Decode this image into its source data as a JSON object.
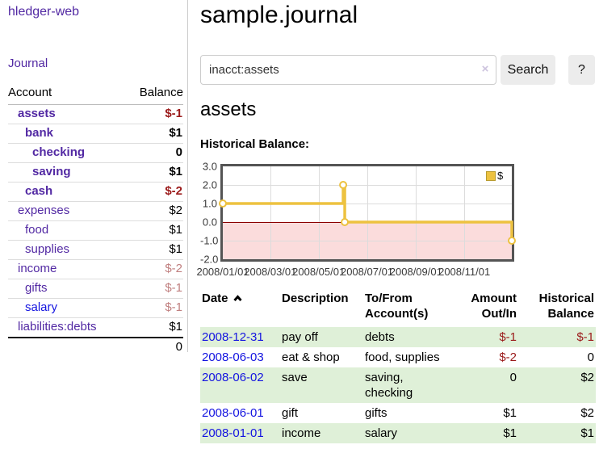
{
  "brand": "hledger-web",
  "colors": {
    "accent_purple": "#5229a3",
    "link_blue": "#1414e0",
    "negative_red": "#9b1a1a",
    "negative_soft_red": "#c07f7f",
    "stripe_green": "#dff0d8",
    "chart_gold": "#edc240",
    "chart_negative_fill": "#fbdcdc",
    "chart_zero_line": "#8b0000"
  },
  "sidebar": {
    "journal_link": "Journal",
    "account_header": "Account",
    "balance_header": "Balance",
    "rows": [
      {
        "account": "assets",
        "balance": "$-1"
      },
      {
        "account": "bank",
        "balance": "$1"
      },
      {
        "account": "checking",
        "balance": "0"
      },
      {
        "account": "saving",
        "balance": "$1"
      },
      {
        "account": "cash",
        "balance": "$-2"
      },
      {
        "account": "expenses",
        "balance": "$2"
      },
      {
        "account": "food",
        "balance": "$1"
      },
      {
        "account": "supplies",
        "balance": "$1"
      },
      {
        "account": "income",
        "balance": "$-2"
      },
      {
        "account": "gifts",
        "balance": "$-1"
      },
      {
        "account": "salary",
        "balance": "$-1"
      },
      {
        "account": "liabilities:debts",
        "balance": "$1"
      }
    ],
    "total": "0"
  },
  "header": {
    "title": "sample.journal"
  },
  "search": {
    "value": "inacct:assets",
    "clear_icon": "×",
    "search_button": "Search",
    "help_button": "?"
  },
  "account_page": {
    "heading": "assets",
    "section_label": "Historical Balance:"
  },
  "chart_data": {
    "type": "line",
    "step": true,
    "title": "Historical Balance",
    "x_range": [
      "2008-01-01",
      "2008-12-31"
    ],
    "ylim": [
      -2,
      3
    ],
    "yticks": [
      {
        "v": 3,
        "label": "3.0"
      },
      {
        "v": 2,
        "label": "2.0"
      },
      {
        "v": 1,
        "label": "1.0"
      },
      {
        "v": 0,
        "label": "0.0"
      },
      {
        "v": -1,
        "label": "-1.0"
      },
      {
        "v": -2,
        "label": "-2.0"
      }
    ],
    "xticks": [
      {
        "date": "2008-01-01",
        "label": "2008/01/01"
      },
      {
        "date": "2008-03-01",
        "label": "2008/03/01"
      },
      {
        "date": "2008-05-01",
        "label": "2008/05/01"
      },
      {
        "date": "2008-07-01",
        "label": "2008/07/01"
      },
      {
        "date": "2008-09-01",
        "label": "2008/09/01"
      },
      {
        "date": "2008-11-01",
        "label": "2008/11/01"
      }
    ],
    "series": [
      {
        "name": "$",
        "color": "#edc240",
        "points": [
          [
            "2008-01-01",
            1
          ],
          [
            "2008-06-01",
            2
          ],
          [
            "2008-06-03",
            0
          ],
          [
            "2008-12-31",
            -1
          ]
        ]
      }
    ],
    "legend_position": "top-right",
    "grid": true,
    "negative_region_shaded": true
  },
  "register": {
    "headers": {
      "date": "Date",
      "description": "Description",
      "accounts": "To/From Account(s)",
      "amount": "Amount Out/In",
      "historical": "Historical Balance"
    },
    "rows": [
      {
        "date": "2008-12-31",
        "description": "pay off",
        "accounts": "debts",
        "amount": "$-1",
        "historical": "$-1"
      },
      {
        "date": "2008-06-03",
        "description": "eat & shop",
        "accounts": "food, supplies",
        "amount": "$-2",
        "historical": "0"
      },
      {
        "date": "2008-06-02",
        "description": "save",
        "accounts": "saving, checking",
        "amount": "0",
        "historical": "$2"
      },
      {
        "date": "2008-06-01",
        "description": "gift",
        "accounts": "gifts",
        "amount": "$1",
        "historical": "$2"
      },
      {
        "date": "2008-01-01",
        "description": "income",
        "accounts": "salary",
        "amount": "$1",
        "historical": "$1"
      }
    ]
  }
}
